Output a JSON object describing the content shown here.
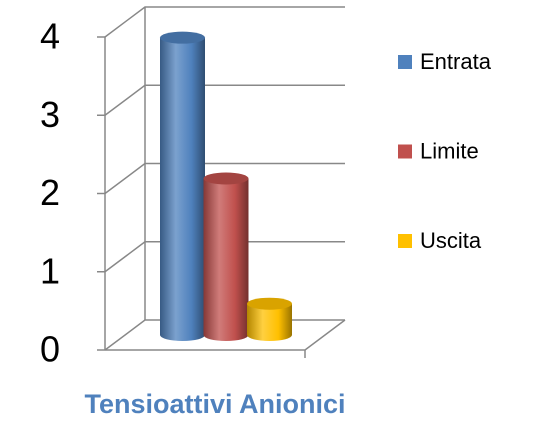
{
  "chart_data": {
    "type": "bar3d",
    "categories": [
      "Tensioattivi Anionici"
    ],
    "series": [
      {
        "name": "Entrata",
        "color": "#4f81bd",
        "values": [
          3.8
        ]
      },
      {
        "name": "Limite",
        "color": "#c0504d",
        "values": [
          2
        ]
      },
      {
        "name": "Uscita",
        "color": "#ffc000",
        "values": [
          0.4
        ]
      }
    ],
    "ylim": [
      0,
      4
    ],
    "yticks": [
      0,
      1,
      2,
      3,
      4
    ],
    "grid": true,
    "legend": "right"
  }
}
